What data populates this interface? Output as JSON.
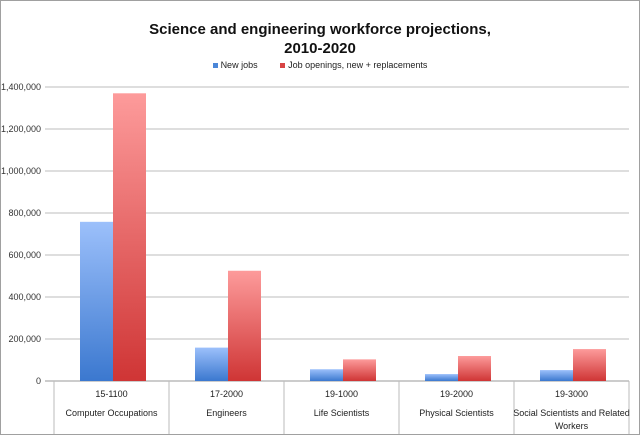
{
  "chart_data": {
    "type": "bar",
    "title": "Science and engineering workforce projections,",
    "title_line2": "2010-2020",
    "categories": [
      {
        "code": "15-1100",
        "name": "Computer Occupations"
      },
      {
        "code": "17-2000",
        "name": "Engineers"
      },
      {
        "code": "19-1000",
        "name": "Life Scientists"
      },
      {
        "code": "19-2000",
        "name": "Physical Scientists"
      },
      {
        "code": "19-3000",
        "name": "Social Scientists and Related Workers"
      }
    ],
    "series": [
      {
        "name": "New jobs",
        "color": "#4a86d8",
        "values": [
          758000,
          159000,
          56000,
          33000,
          52000
        ]
      },
      {
        "name": "Job openings, new + replacements",
        "color": "#d84444",
        "values": [
          1370000,
          525000,
          103000,
          119000,
          152000
        ]
      }
    ],
    "ylim": [
      0,
      1400000
    ],
    "yticks": [
      "0",
      "200,000",
      "400,000",
      "600,000",
      "800,000",
      "1,000,000",
      "1,200,000",
      "1,400,000"
    ],
    "grid": true,
    "legend": "top-center"
  }
}
